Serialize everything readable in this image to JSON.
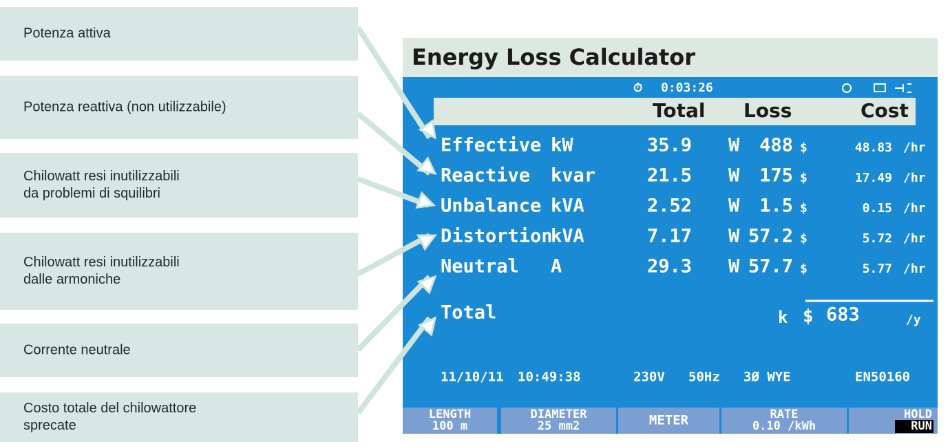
{
  "callouts": [
    {
      "lines": [
        "Potenza attiva"
      ]
    },
    {
      "lines": [
        "Potenza reattiva (non utilizzabile)"
      ]
    },
    {
      "lines": [
        "Chilowatt resi inutilizzabili",
        "da problemi di squilibri"
      ]
    },
    {
      "lines": [
        "Chilowatt resi inutilizzabili",
        "dalle armoniche"
      ]
    },
    {
      "lines": [
        "Corrente neutrale"
      ]
    },
    {
      "lines": [
        "Costo totale del chilowattore",
        "sprecate"
      ]
    }
  ],
  "screen": {
    "title": "Energy Loss Calculator",
    "timer": "0:03:26",
    "headers": [
      "Total",
      "Loss",
      "Cost"
    ],
    "rows": [
      {
        "name": "Effective",
        "unit": "kW",
        "total": "35.9",
        "loss_unit": "W",
        "loss": "488",
        "currency": "$",
        "cost": "48.83",
        "per": "/hr"
      },
      {
        "name": "Reactive",
        "unit": "kvar",
        "total": "21.5",
        "loss_unit": "W",
        "loss": "175",
        "currency": "$",
        "cost": "17.49",
        "per": "/hr"
      },
      {
        "name": "Unbalance",
        "unit": "kVA",
        "total": "2.52",
        "loss_unit": "W",
        "loss": "1.5",
        "currency": "$",
        "cost": "0.15",
        "per": "/hr"
      },
      {
        "name": "Distortion",
        "unit": "kVA",
        "total": "7.17",
        "loss_unit": "W",
        "loss": "57.2",
        "currency": "$",
        "cost": "5.72",
        "per": "/hr"
      },
      {
        "name": "Neutral",
        "unit": "A",
        "total": "29.3",
        "loss_unit": "W",
        "loss": "57.7",
        "currency": "$",
        "cost": "5.77",
        "per": "/hr"
      }
    ],
    "total_row": {
      "name": "Total",
      "prefix": "k",
      "currency": "$",
      "value": "683",
      "per": "/y"
    },
    "footer": [
      "11/10/11",
      "10:49:38",
      "230V",
      "50Hz",
      "3Ø WYE",
      "EN50160"
    ],
    "softkeys": [
      {
        "lines": [
          "LENGTH",
          "100 m"
        ]
      },
      {
        "lines": [
          "DIAMETER",
          "25 mm2"
        ]
      },
      {
        "lines": [
          "METER"
        ]
      },
      {
        "lines": [
          "RATE",
          "0.10 /kWh"
        ]
      },
      {
        "lines": [
          "HOLD",
          "RUN"
        ]
      }
    ]
  }
}
